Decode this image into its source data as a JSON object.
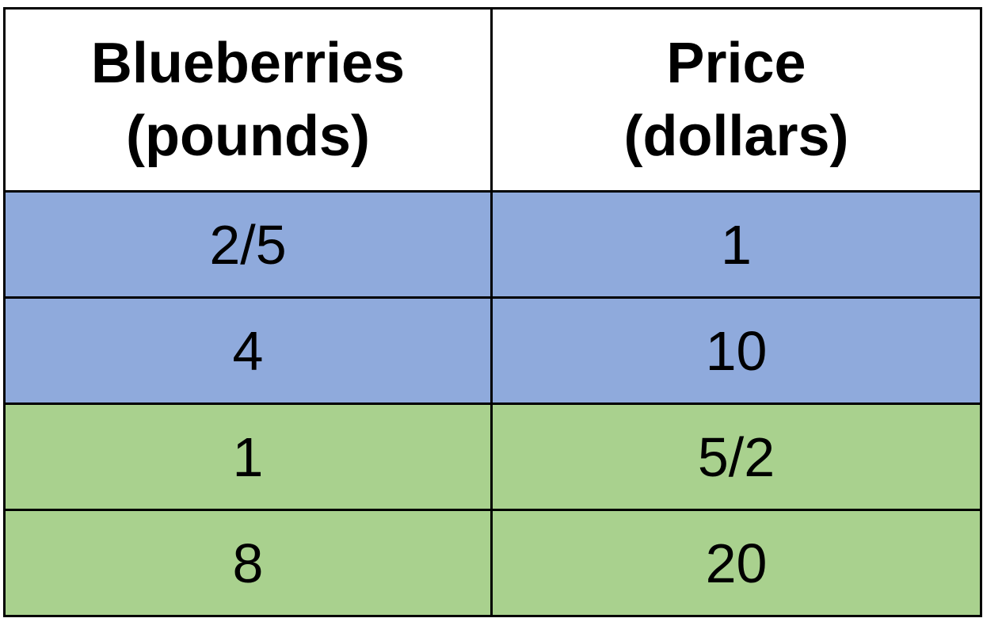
{
  "colors": {
    "blue_row": "#8faadc",
    "green_row": "#a9d18e",
    "header_bg": "#ffffff",
    "border": "#000000"
  },
  "table": {
    "headers": [
      {
        "line1": "Blueberries",
        "line2": "(pounds)"
      },
      {
        "line1": "Price",
        "line2": "(dollars)"
      }
    ],
    "rows": [
      {
        "pounds": "2/5",
        "price": "1",
        "color": "blue"
      },
      {
        "pounds": "4",
        "price": "10",
        "color": "blue"
      },
      {
        "pounds": "1",
        "price": "5/2",
        "color": "green"
      },
      {
        "pounds": "8",
        "price": "20",
        "color": "green"
      }
    ]
  }
}
